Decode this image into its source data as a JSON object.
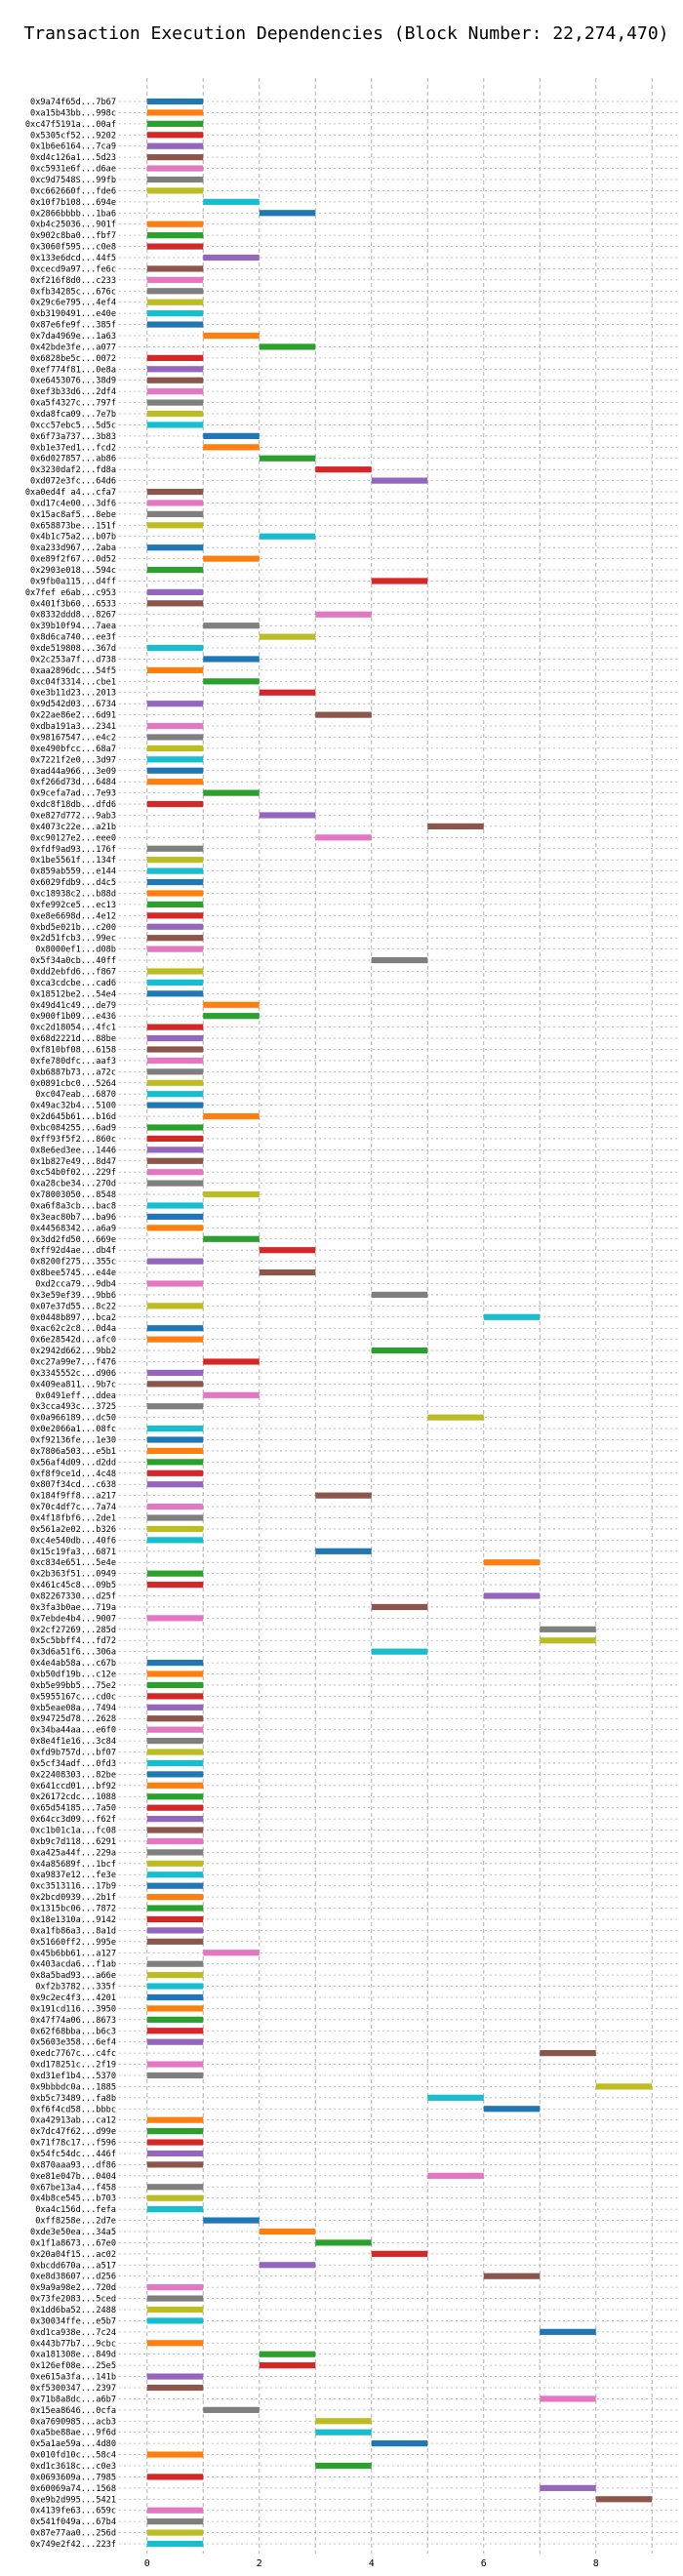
{
  "chart_data": {
    "type": "bar",
    "orientation": "horizontal",
    "title": "Transaction Execution Dependencies (Block Number: 22,274,470)",
    "xlabel": "",
    "ylabel": "",
    "xlim": [
      -0.5,
      9.5
    ],
    "xticks": [
      0,
      2,
      4,
      6,
      8
    ],
    "grid": true,
    "colors": [
      "#1f77b4",
      "#ff7f0e",
      "#2ca02c",
      "#d62728",
      "#9467bd",
      "#8c564b",
      "#e377c2",
      "#7f7f7f",
      "#bcbd22",
      "#17becf"
    ],
    "bar_length": 1,
    "transactions": [
      {
        "label": "0x9a74f65d...7b67",
        "start": 0
      },
      {
        "label": "0xa15b43bb...998c",
        "start": 0
      },
      {
        "label": "0xc47f5191a...00af",
        "start": 0
      },
      {
        "label": "0x5305cf52...9202",
        "start": 0
      },
      {
        "label": "0x1b6e6164...7ca9",
        "start": 0
      },
      {
        "label": "0xd4c126a1...5d23",
        "start": 0
      },
      {
        "label": "0xc5931e6f...d6ae",
        "start": 0
      },
      {
        "label": "0xc9d7548S...99fb",
        "start": 0
      },
      {
        "label": "0xc662660f...fde6",
        "start": 0
      },
      {
        "label": "0x10f7b108...694e",
        "start": 1
      },
      {
        "label": "0x2866bbbb...1ba6",
        "start": 2
      },
      {
        "label": "0xb4c25036...901f",
        "start": 0
      },
      {
        "label": "0x902c8ba0...fbf7",
        "start": 0
      },
      {
        "label": "0x3060f595...c0e8",
        "start": 0
      },
      {
        "label": "0x133e6dcd...44f5",
        "start": 1
      },
      {
        "label": "0xcecd9a97...fe6c",
        "start": 0
      },
      {
        "label": "0xf216f8d0...c233",
        "start": 0
      },
      {
        "label": "0xfb34285c...676c",
        "start": 0
      },
      {
        "label": "0x29c6e795...4ef4",
        "start": 0
      },
      {
        "label": "0xb3190491...e40e",
        "start": 0
      },
      {
        "label": "0x87e6fe9f...385f",
        "start": 0
      },
      {
        "label": "0x7da4969e...1a63",
        "start": 1
      },
      {
        "label": "0x42bde3fe...a077",
        "start": 2
      },
      {
        "label": "0x6828be5c...0072",
        "start": 0
      },
      {
        "label": "0xef774f81...0e8a",
        "start": 0
      },
      {
        "label": "0xe6453076...38d9",
        "start": 0
      },
      {
        "label": "0xef3b33d6...2df4",
        "start": 0
      },
      {
        "label": "0xa5f4327c...797f",
        "start": 0
      },
      {
        "label": "0xda8fca09...7e7b",
        "start": 0
      },
      {
        "label": "0xcc57ebc5...5d5c",
        "start": 0
      },
      {
        "label": "0x6f73a737...3b83",
        "start": 1
      },
      {
        "label": "0xb1e37ed1...fcd2",
        "start": 1
      },
      {
        "label": "0x6d027857...ab86",
        "start": 2
      },
      {
        "label": "0x3230daf2...fd8a",
        "start": 3
      },
      {
        "label": "0xd072e3fc...64d6",
        "start": 4
      },
      {
        "label": "0xa0ed4f a4...cfa7",
        "start": 0
      },
      {
        "label": "0xd17c4e00...3df6",
        "start": 0
      },
      {
        "label": "0x15ac8af5...8ebe",
        "start": 0
      },
      {
        "label": "0x658873be...151f",
        "start": 0
      },
      {
        "label": "0x4b1c75a2...b07b",
        "start": 2
      },
      {
        "label": "0xa233d967...2aba",
        "start": 0
      },
      {
        "label": "0xe89f2f67...0d52",
        "start": 1
      },
      {
        "label": "0x2903e018...594c",
        "start": 0
      },
      {
        "label": "0x9fb0a115...d4ff",
        "start": 4
      },
      {
        "label": "0x7fef e6ab...c953",
        "start": 0
      },
      {
        "label": "0x401f3b60...6533",
        "start": 0
      },
      {
        "label": "0x8332ddd8...8267",
        "start": 3
      },
      {
        "label": "0x39b10f94...7aea",
        "start": 1
      },
      {
        "label": "0x8d6ca740...ee3f",
        "start": 2
      },
      {
        "label": "0xde519808...367d",
        "start": 0
      },
      {
        "label": "0x2c253a7f...d738",
        "start": 1
      },
      {
        "label": "0xaa2896dc...54f5",
        "start": 0
      },
      {
        "label": "0xc04f3314...cbe1",
        "start": 1
      },
      {
        "label": "0xe3b11d23...2013",
        "start": 2
      },
      {
        "label": "0x9d542d03...6734",
        "start": 0
      },
      {
        "label": "0x22ae86e2...6d91",
        "start": 3
      },
      {
        "label": "0xdba191a3...2341",
        "start": 0
      },
      {
        "label": "0x98167547...e4c2",
        "start": 0
      },
      {
        "label": "0xe490bfcc...68a7",
        "start": 0
      },
      {
        "label": "0x7221f2e0...3d97",
        "start": 0
      },
      {
        "label": "0xad44a966...3e09",
        "start": 0
      },
      {
        "label": "0xf266d73d...6484",
        "start": 0
      },
      {
        "label": "0x9cefa7ad...7e93",
        "start": 1
      },
      {
        "label": "0xdc8f18db...dfd6",
        "start": 0
      },
      {
        "label": "0xe827d772...9ab3",
        "start": 2
      },
      {
        "label": "0x4073c22e...a21b",
        "start": 5
      },
      {
        "label": "0xc90127e2...eee0",
        "start": 3
      },
      {
        "label": "0xfdf9ad93...176f",
        "start": 0
      },
      {
        "label": "0x1be5561f...134f",
        "start": 0
      },
      {
        "label": "0x859ab559...e144",
        "start": 0
      },
      {
        "label": "0x6029fdb9...d4c5",
        "start": 0
      },
      {
        "label": "0xc18938c2...b88d",
        "start": 0
      },
      {
        "label": "0xfe992ce5...ec13",
        "start": 0
      },
      {
        "label": "0xe8e6698d...4e12",
        "start": 0
      },
      {
        "label": "0xbd5e021b...c200",
        "start": 0
      },
      {
        "label": "0x2d51fcb3...99ec",
        "start": 0
      },
      {
        "label": "0x8000ef1...d08b",
        "start": 0
      },
      {
        "label": "0x5f34a0cb...40ff",
        "start": 4
      },
      {
        "label": "0xdd2ebfd6...f867",
        "start": 0
      },
      {
        "label": "0xca3cdcbe...cad6",
        "start": 0
      },
      {
        "label": "0x18512be2...54e4",
        "start": 0
      },
      {
        "label": "0x49d41c49...de79",
        "start": 1
      },
      {
        "label": "0x900f1b09...e436",
        "start": 1
      },
      {
        "label": "0xc2d18054...4fc1",
        "start": 0
      },
      {
        "label": "0x68d2221d...88be",
        "start": 0
      },
      {
        "label": "0xf810bf08...6158",
        "start": 0
      },
      {
        "label": "0xfe780dfc...aaf3",
        "start": 0
      },
      {
        "label": "0xb6887b73...a72c",
        "start": 0
      },
      {
        "label": "0x0891cbc0...5264",
        "start": 0
      },
      {
        "label": "0xc047eab...6870",
        "start": 0
      },
      {
        "label": "0x49ac32b4...5100",
        "start": 0
      },
      {
        "label": "0x2d645b61...b16d",
        "start": 1
      },
      {
        "label": "0xbc084255...6ad9",
        "start": 0
      },
      {
        "label": "0xff93f5f2...860c",
        "start": 0
      },
      {
        "label": "0x8e6ed3ee...1446",
        "start": 0
      },
      {
        "label": "0x1b827e49...8d47",
        "start": 0
      },
      {
        "label": "0xc54b0f02...229f",
        "start": 0
      },
      {
        "label": "0xa28cbe34...270d",
        "start": 0
      },
      {
        "label": "0x78003050...8548",
        "start": 1
      },
      {
        "label": "0xa6f8a3cb...bac8",
        "start": 0
      },
      {
        "label": "0x3eac80b7...ba96",
        "start": 0
      },
      {
        "label": "0x44568342...a6a9",
        "start": 0
      },
      {
        "label": "0x3dd2fd50...669e",
        "start": 1
      },
      {
        "label": "0xff92d4ae...db4f",
        "start": 2
      },
      {
        "label": "0x8200f275...355c",
        "start": 0
      },
      {
        "label": "0x8bee5745...e44e",
        "start": 2
      },
      {
        "label": "0xd2cca79...9db4",
        "start": 0
      },
      {
        "label": "0x3e59ef39...9bb6",
        "start": 4
      },
      {
        "label": "0x07e37d55...8c22",
        "start": 0
      },
      {
        "label": "0x0448b897...bca2",
        "start": 6
      },
      {
        "label": "0xac62c2c8...0d4a",
        "start": 0
      },
      {
        "label": "0x6e28542d...afc0",
        "start": 0
      },
      {
        "label": "0x2942d662...9bb2",
        "start": 4
      },
      {
        "label": "0xc27a99e7...f476",
        "start": 1
      },
      {
        "label": "0x3345552c...d906",
        "start": 0
      },
      {
        "label": "0x409ea811...9b7c",
        "start": 0
      },
      {
        "label": "0x0491eff...ddea",
        "start": 1
      },
      {
        "label": "0x3cca493c...3725",
        "start": 0
      },
      {
        "label": "0x0a966189...dc50",
        "start": 5
      },
      {
        "label": "0x0e2066a1...08fc",
        "start": 0
      },
      {
        "label": "0xf92136fe...1e30",
        "start": 0
      },
      {
        "label": "0x7806a503...e5b1",
        "start": 0
      },
      {
        "label": "0x56af4d09...d2dd",
        "start": 0
      },
      {
        "label": "0xf8f9ce1d...4c48",
        "start": 0
      },
      {
        "label": "0x807f34cd...c638",
        "start": 0
      },
      {
        "label": "0x184f9ff8...a217",
        "start": 3
      },
      {
        "label": "0x70c4df7c...7a74",
        "start": 0
      },
      {
        "label": "0x4f18fbf6...2de1",
        "start": 0
      },
      {
        "label": "0x561a2e02...b326",
        "start": 0
      },
      {
        "label": "0xc4e540db...40f6",
        "start": 0
      },
      {
        "label": "0x15c19fa3...6871",
        "start": 3
      },
      {
        "label": "0xc834e651...5e4e",
        "start": 6
      },
      {
        "label": "0x2b363f51...0949",
        "start": 0
      },
      {
        "label": "0x461c45c8...09b5",
        "start": 0
      },
      {
        "label": "0x82267330...d25f",
        "start": 6
      },
      {
        "label": "0x3fa3b0ae...719a",
        "start": 4
      },
      {
        "label": "0x7ebde4b4...9007",
        "start": 0
      },
      {
        "label": "0x2cf27269...285d",
        "start": 7
      },
      {
        "label": "0x5c5bbff4...fd72",
        "start": 7
      },
      {
        "label": "0x3d6a51f6...306a",
        "start": 4
      },
      {
        "label": "0x4e4ab58a...c67b",
        "start": 0
      },
      {
        "label": "0xb50df19b...c12e",
        "start": 0
      },
      {
        "label": "0xb5e99bb5...75e2",
        "start": 0
      },
      {
        "label": "0x5955167c...cd0c",
        "start": 0
      },
      {
        "label": "0xb5eae08a...7494",
        "start": 0
      },
      {
        "label": "0x94725d78...2628",
        "start": 0
      },
      {
        "label": "0x34ba44aa...e6f0",
        "start": 0
      },
      {
        "label": "0x8e4f1e16...3c84",
        "start": 0
      },
      {
        "label": "0xfd9b757d...bf07",
        "start": 0
      },
      {
        "label": "0x5cf34adf...0fd3",
        "start": 0
      },
      {
        "label": "0x22408303...82be",
        "start": 0
      },
      {
        "label": "0x641ccd01...bf92",
        "start": 0
      },
      {
        "label": "0x26172cdc...1088",
        "start": 0
      },
      {
        "label": "0x65d54185...7a50",
        "start": 0
      },
      {
        "label": "0x64cc3d09...f62f",
        "start": 0
      },
      {
        "label": "0xc1b01c1a...fc08",
        "start": 0
      },
      {
        "label": "0xb9c7d118...6291",
        "start": 0
      },
      {
        "label": "0xa425a44f...229a",
        "start": 0
      },
      {
        "label": "0x4a85689f...1bcf",
        "start": 0
      },
      {
        "label": "0xa9837e12...fe3e",
        "start": 0
      },
      {
        "label": "0xc3513116...17b9",
        "start": 0
      },
      {
        "label": "0x2bcd0939...2b1f",
        "start": 0
      },
      {
        "label": "0x1315bc06...7872",
        "start": 0
      },
      {
        "label": "0x18e1310a...9142",
        "start": 0
      },
      {
        "label": "0xa1fb86a3...8a1d",
        "start": 0
      },
      {
        "label": "0x51660ff2...995e",
        "start": 0
      },
      {
        "label": "0x45b6bb61...a127",
        "start": 1
      },
      {
        "label": "0x403acda6...f1ab",
        "start": 0
      },
      {
        "label": "0x8a5bad93...a66e",
        "start": 0
      },
      {
        "label": "0xf2b3782...335f",
        "start": 0
      },
      {
        "label": "0x9c2ec4f3...4201",
        "start": 0
      },
      {
        "label": "0x191cd116...3950",
        "start": 0
      },
      {
        "label": "0x47f74a06...8673",
        "start": 0
      },
      {
        "label": "0x62f68bba...b6c3",
        "start": 0
      },
      {
        "label": "0x5603e358...6ef4",
        "start": 0
      },
      {
        "label": "0xedc7767c...c4fc",
        "start": 7
      },
      {
        "label": "0xd178251c...2f19",
        "start": 0
      },
      {
        "label": "0xd31ef1b4...5370",
        "start": 0
      },
      {
        "label": "0x9bbbdc0a...1885",
        "start": 8
      },
      {
        "label": "0xb5c73489...fa8b",
        "start": 5
      },
      {
        "label": "0xf6f4cd58...bbbc",
        "start": 6
      },
      {
        "label": "0xa42913ab...ca12",
        "start": 0
      },
      {
        "label": "0x7dc47f62...d99e",
        "start": 0
      },
      {
        "label": "0x71f78c17...f596",
        "start": 0
      },
      {
        "label": "0x54fc54dc...446f",
        "start": 0
      },
      {
        "label": "0x870aaa93...df86",
        "start": 0
      },
      {
        "label": "0xe81e047b...0404",
        "start": 5
      },
      {
        "label": "0x67be13a4...f458",
        "start": 0
      },
      {
        "label": "0x4b8ce545...b703",
        "start": 0
      },
      {
        "label": "0xa4c156d...fefa",
        "start": 0
      },
      {
        "label": "0xff8258e...2d7e",
        "start": 1
      },
      {
        "label": "0xde3e50ea...34a5",
        "start": 2
      },
      {
        "label": "0x1f1a8673...67e0",
        "start": 3
      },
      {
        "label": "0x20a04f15...ac02",
        "start": 4
      },
      {
        "label": "0xbcdd670a...a517",
        "start": 2
      },
      {
        "label": "0xe8d38607...d256",
        "start": 6
      },
      {
        "label": "0x9a9a98e2...720d",
        "start": 0
      },
      {
        "label": "0x73fe2083...5ced",
        "start": 0
      },
      {
        "label": "0x1dd6ba52...2488",
        "start": 0
      },
      {
        "label": "0x30034ffe...e5b7",
        "start": 0
      },
      {
        "label": "0xd1ca938e...7c24",
        "start": 7
      },
      {
        "label": "0x443b77b7...9cbc",
        "start": 0
      },
      {
        "label": "0xa181308e...849d",
        "start": 2
      },
      {
        "label": "0x126ef08e...25e5",
        "start": 2
      },
      {
        "label": "0xe615a3fa...141b",
        "start": 0
      },
      {
        "label": "0xf5300347...2397",
        "start": 0
      },
      {
        "label": "0x71b8a8dc...a6b7",
        "start": 7
      },
      {
        "label": "0x15ea8646...0cfa",
        "start": 1
      },
      {
        "label": "0xa7690985...acb3",
        "start": 3
      },
      {
        "label": "0xa5be88ae...9f6d",
        "start": 3
      },
      {
        "label": "0x5a1ae59a...4d80",
        "start": 4
      },
      {
        "label": "0x010fd10c...58c4",
        "start": 0
      },
      {
        "label": "0xd1c3618c...c0e3",
        "start": 3
      },
      {
        "label": "0x0693609a...7985",
        "start": 0
      },
      {
        "label": "0x60069a74...1568",
        "start": 7
      },
      {
        "label": "0xe9b2d995...5421",
        "start": 8
      },
      {
        "label": "0x4139fe63...659c",
        "start": 0
      },
      {
        "label": "0x541f049a...67b4",
        "start": 0
      },
      {
        "label": "0x87e77aa0...256d",
        "start": 0
      },
      {
        "label": "0x749e2f42...223f",
        "start": 0
      }
    ]
  }
}
